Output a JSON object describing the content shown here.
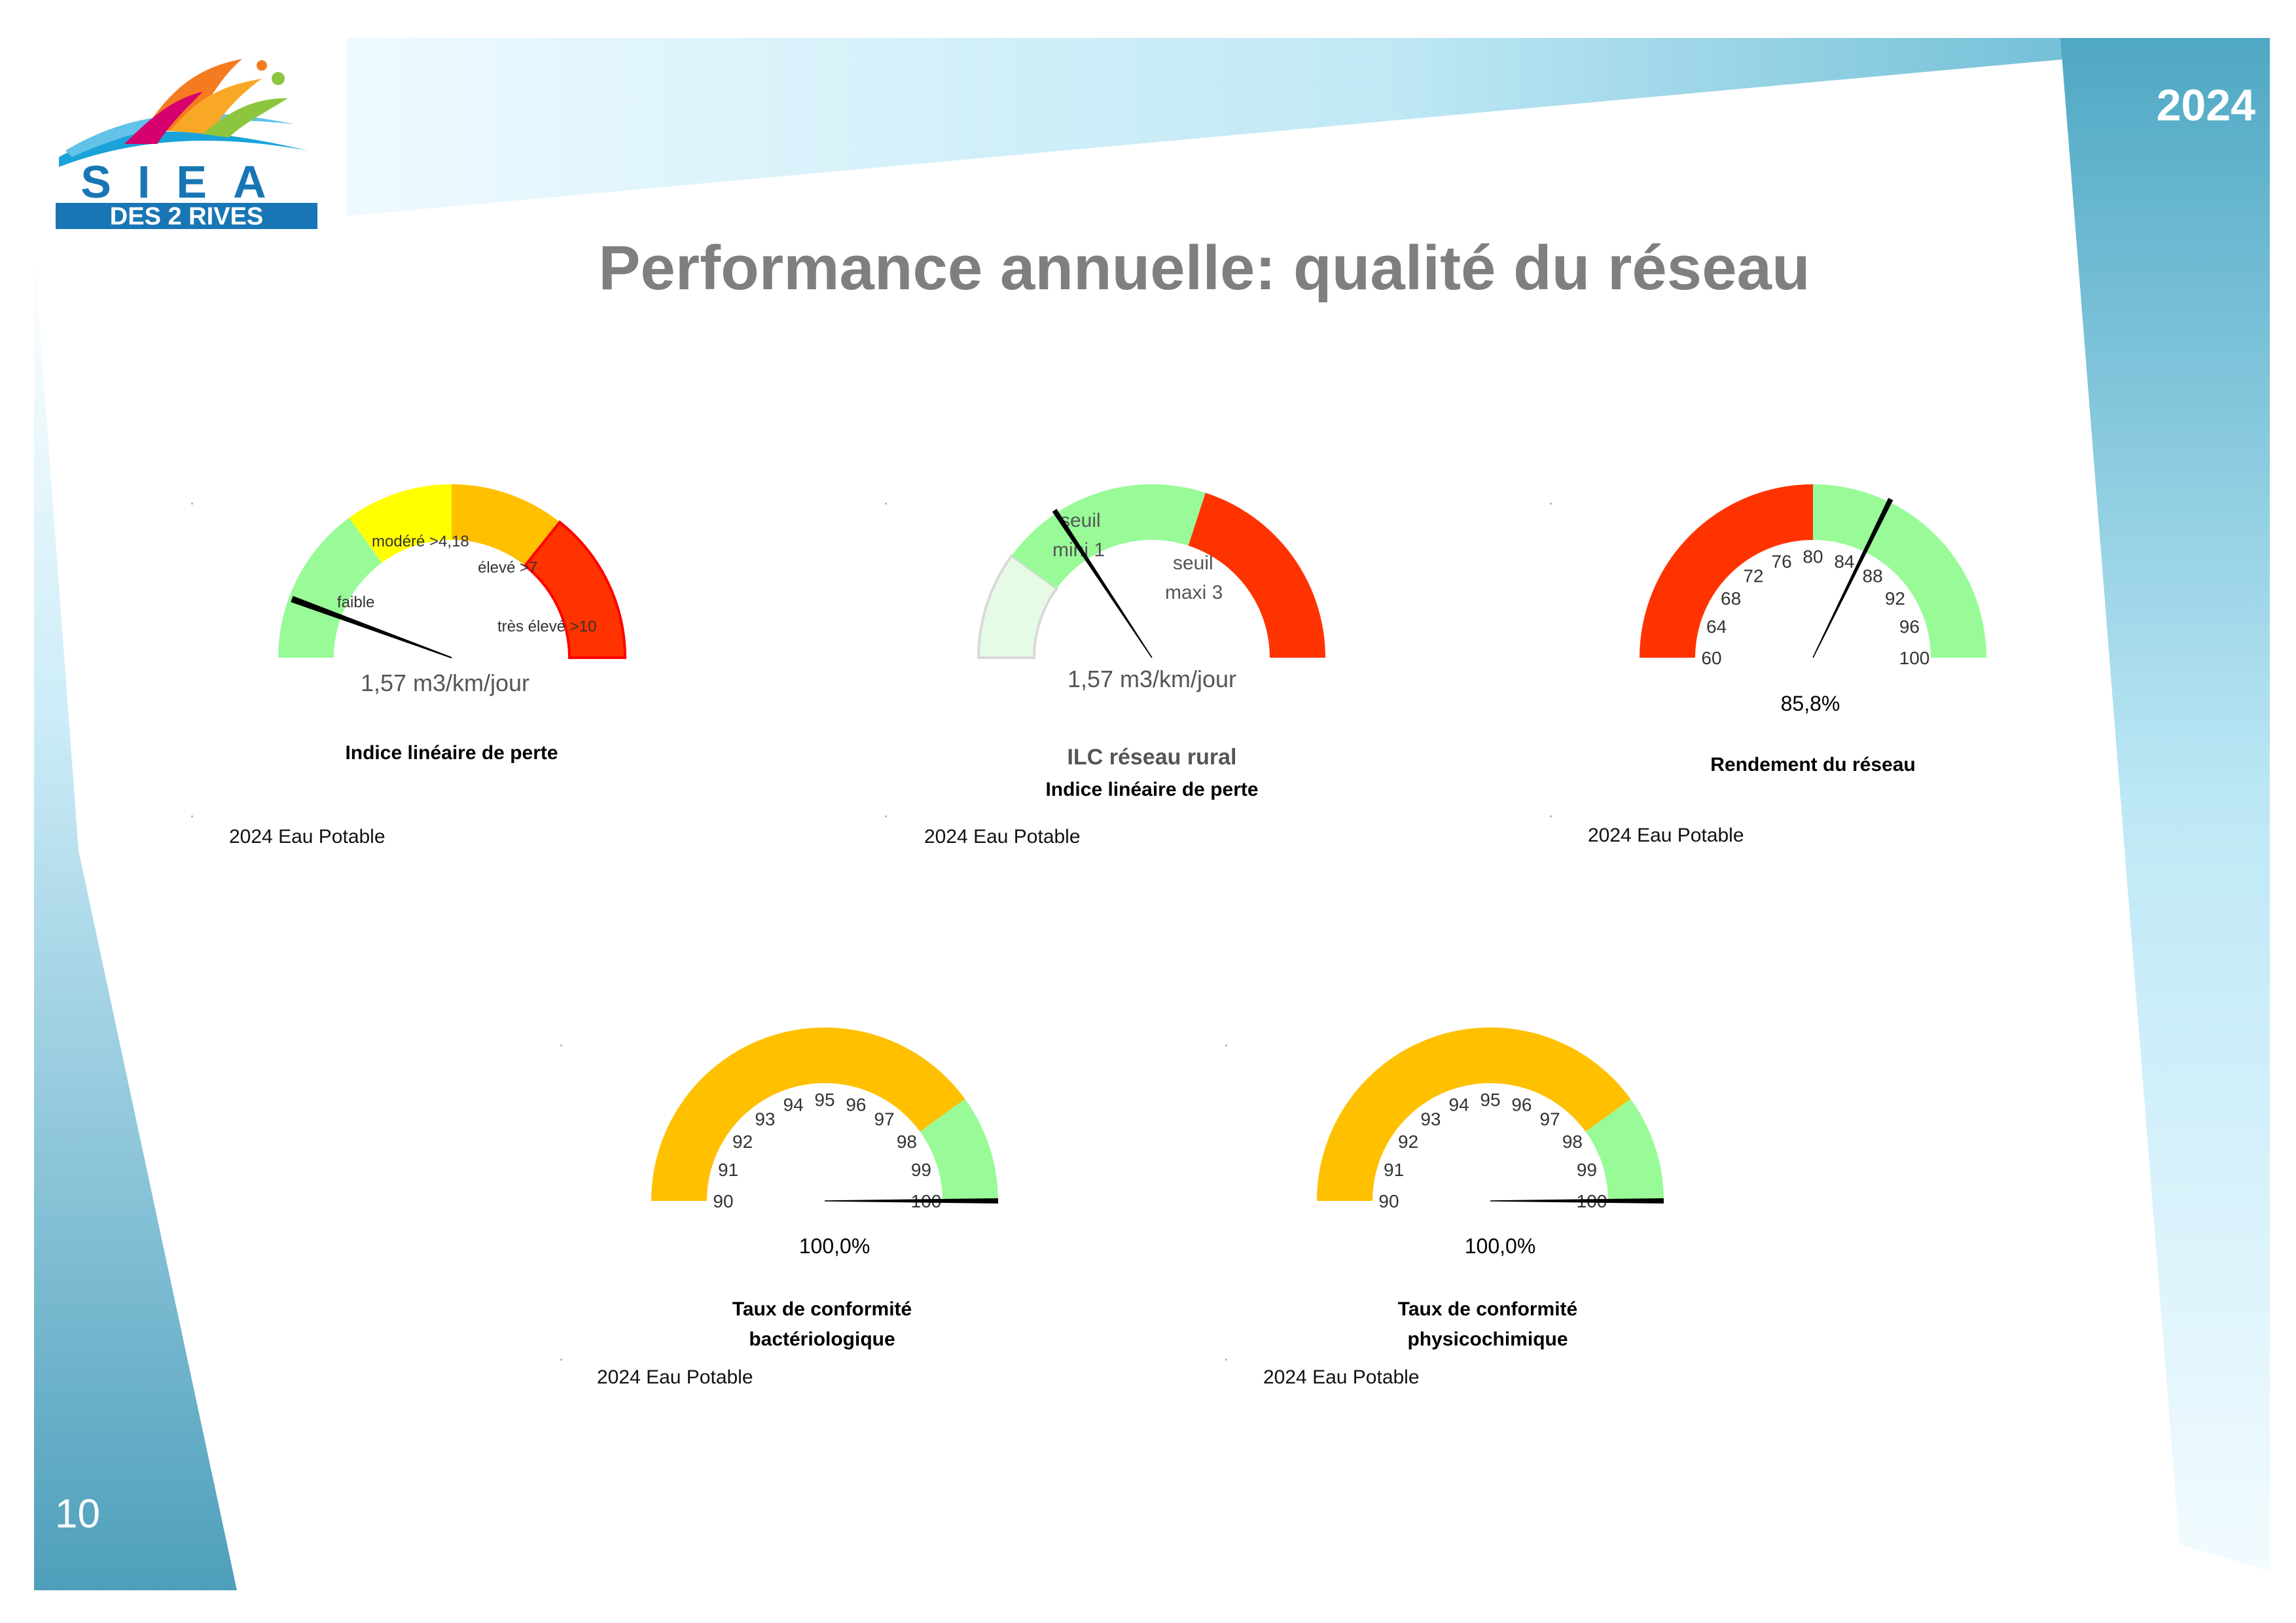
{
  "header": {
    "year": "2024",
    "page_number": "10",
    "title": "Performance annuelle: qualité du réseau"
  },
  "logo": {
    "text_top": "SIEA",
    "text_bottom": "DES 2 RIVES"
  },
  "colors": {
    "green": "#98fb98",
    "pale_green": "#e6fbe6",
    "yellow": "#ffff00",
    "orange": "#ffc000",
    "red": "#ff3300",
    "needle": "#000000"
  },
  "chart_data": [
    {
      "type": "gauge",
      "title": "Indice linéaire de perte",
      "zones": [
        {
          "label": "faible",
          "from": 0,
          "to": 4.18,
          "color": "#98fb98"
        },
        {
          "label": "modéré >4,18",
          "from": 4.18,
          "to": 7,
          "color": "#ffff00"
        },
        {
          "label": "élevé >7",
          "from": 7,
          "to": 10,
          "color": "#ffc000"
        },
        {
          "label": "très élevé >10",
          "from": 10,
          "to": 14,
          "color": "#ff3300"
        }
      ],
      "range": [
        0,
        14
      ],
      "value": 1.57,
      "value_label": "1,57 m3/km/jour",
      "footer": "2024 Eau Potable"
    },
    {
      "type": "gauge",
      "title": "ILC réseau rural",
      "subtitle": "Indice linéaire de perte",
      "zones": [
        {
          "label": "",
          "from": 0,
          "to": 1,
          "color": "#e6fbe6"
        },
        {
          "label": "seuil mini 1",
          "from": 1,
          "to": 3,
          "color": "#98fb98"
        },
        {
          "label": "seuil maxi 3",
          "from": 3,
          "to": 5,
          "color": "#ff3300"
        }
      ],
      "range": [
        0,
        5
      ],
      "value": 1.57,
      "value_label": "1,57 m3/km/jour",
      "footer": "2024 Eau Potable"
    },
    {
      "type": "gauge",
      "title": "Rendement du réseau",
      "zones": [
        {
          "from": 60,
          "to": 80,
          "color": "#ff3300"
        },
        {
          "from": 80,
          "to": 100,
          "color": "#98fb98"
        }
      ],
      "range": [
        60,
        100
      ],
      "ticks": [
        "60",
        "64",
        "68",
        "72",
        "76",
        "80",
        "84",
        "88",
        "92",
        "96",
        "100"
      ],
      "value": 85.8,
      "value_label": "85,8%",
      "footer": "2024 Eau Potable"
    },
    {
      "type": "gauge",
      "title": "Taux de conformité",
      "title_line2": "bactériologique",
      "zones": [
        {
          "from": 90,
          "to": 98,
          "color": "#ffc000"
        },
        {
          "from": 98,
          "to": 100,
          "color": "#98fb98"
        }
      ],
      "range": [
        90,
        100
      ],
      "ticks": [
        "90",
        "91",
        "92",
        "93",
        "94",
        "95",
        "96",
        "97",
        "98",
        "99",
        "100"
      ],
      "value": 100,
      "value_label": "100,0%",
      "footer": "2024 Eau Potable"
    },
    {
      "type": "gauge",
      "title": "Taux de conformité",
      "title_line2": "physicochimique",
      "zones": [
        {
          "from": 90,
          "to": 98,
          "color": "#ffc000"
        },
        {
          "from": 98,
          "to": 100,
          "color": "#98fb98"
        }
      ],
      "range": [
        90,
        100
      ],
      "ticks": [
        "90",
        "91",
        "92",
        "93",
        "94",
        "95",
        "96",
        "97",
        "98",
        "99",
        "100"
      ],
      "value": 100,
      "value_label": "100,0%",
      "footer": "2024 Eau Potable"
    }
  ]
}
